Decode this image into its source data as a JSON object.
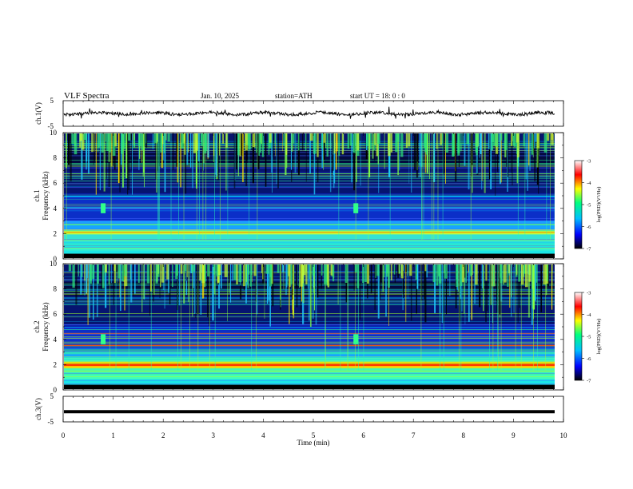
{
  "header": {
    "title": "VLF Spectra",
    "date": "Jan. 10, 2025",
    "station": "station=ATH",
    "start_ut": "start UT = 18: 0 : 0"
  },
  "colors": {
    "colormap": [
      "#000000",
      "#0000ff",
      "#00bfff",
      "#00ff80",
      "#ffff00",
      "#ff0000",
      "#ffffff"
    ]
  },
  "chart_data": [
    {
      "type": "line",
      "ylabel": "ch.1(V)",
      "ylim": [
        -5,
        5
      ],
      "yticks": [
        "5",
        "-5"
      ],
      "xlim": [
        0,
        10
      ],
      "series": [
        {
          "values": "noisy waveform near 0 V"
        }
      ]
    },
    {
      "type": "heatmap",
      "ylabel": "ch.1\nFrequency (kHz)",
      "ylabel_lines": [
        "ch.1",
        "Frequency (kHz)"
      ],
      "ylim": [
        0,
        10
      ],
      "yticks": [
        "0",
        "2",
        "4",
        "6",
        "8",
        "10"
      ],
      "xlim": [
        0,
        10
      ],
      "colorbar": {
        "label": "log(PSD)(V²/Hz)",
        "range": [
          -7,
          -3
        ],
        "ticks": [
          "-3",
          "-4",
          "-5",
          "-6",
          "-7"
        ]
      }
    },
    {
      "type": "heatmap",
      "ylabel": "ch.2\nFrequency (kHz)",
      "ylabel_lines": [
        "ch.2",
        "Frequency (kHz)"
      ],
      "ylim": [
        0,
        10
      ],
      "yticks": [
        "0",
        "2",
        "4",
        "6",
        "8",
        "10"
      ],
      "xlim": [
        0,
        10
      ],
      "colorbar": {
        "label": "log(PSD)(V²/Hz)",
        "range": [
          -7,
          -3
        ],
        "ticks": [
          "-3",
          "-4",
          "-5",
          "-6",
          "-7"
        ]
      }
    },
    {
      "type": "line",
      "ylabel": "ch.3(V)",
      "ylim": [
        -5,
        5
      ],
      "yticks": [
        "5",
        "-5"
      ],
      "xlim": [
        0,
        10
      ],
      "xlabel": "Time (min)",
      "xticks": [
        "0",
        "1",
        "2",
        "3",
        "4",
        "5",
        "6",
        "7",
        "8",
        "9",
        "10"
      ],
      "series": [
        {
          "values": "flat thick trace at about -1 V"
        }
      ]
    }
  ]
}
